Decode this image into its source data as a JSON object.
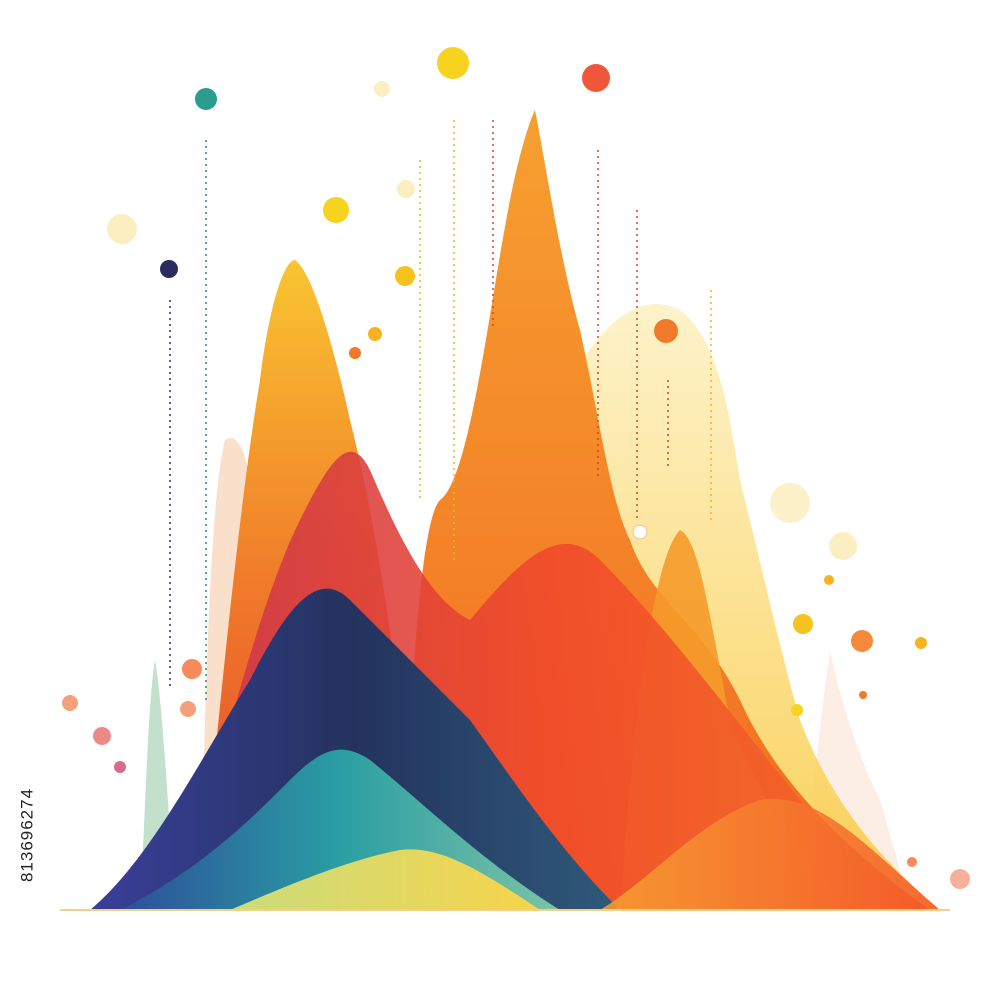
{
  "image_id": "813696274"
}
